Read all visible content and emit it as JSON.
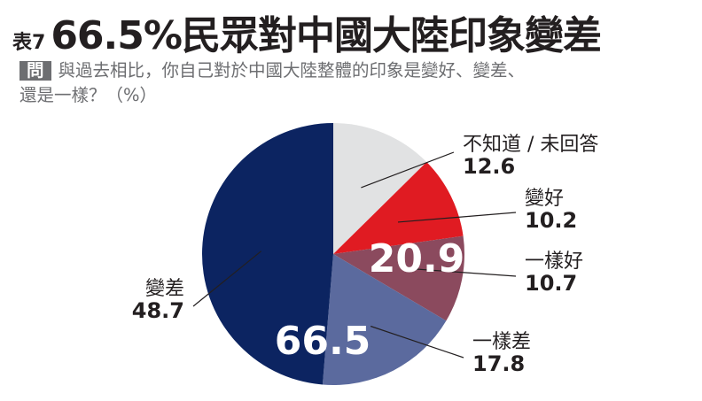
{
  "header": {
    "table_no": "表7",
    "title": "66.5%民眾對中國大陸印象變差",
    "question_badge": "問",
    "question_line1": "與過去相比，你自己對於中國大陸整體的印象是變好、變差、",
    "question_line2": "還是一樣？（%）"
  },
  "chart_data": {
    "type": "pie",
    "unit": "%",
    "slices": [
      {
        "label": "不知道 / 未回答",
        "value": 12.6,
        "color": "#e1e2e3"
      },
      {
        "label": "變好",
        "value": 10.2,
        "color": "#e01b22"
      },
      {
        "label": "一樣好",
        "value": 10.7,
        "color": "#8b4a5e"
      },
      {
        "label": "一樣差",
        "value": 17.8,
        "color": "#5b6a9e"
      },
      {
        "label": "變差",
        "value": 48.7,
        "color": "#0c2461"
      }
    ],
    "group_totals": [
      {
        "value": "20.9"
      },
      {
        "value": "66.5"
      }
    ]
  }
}
